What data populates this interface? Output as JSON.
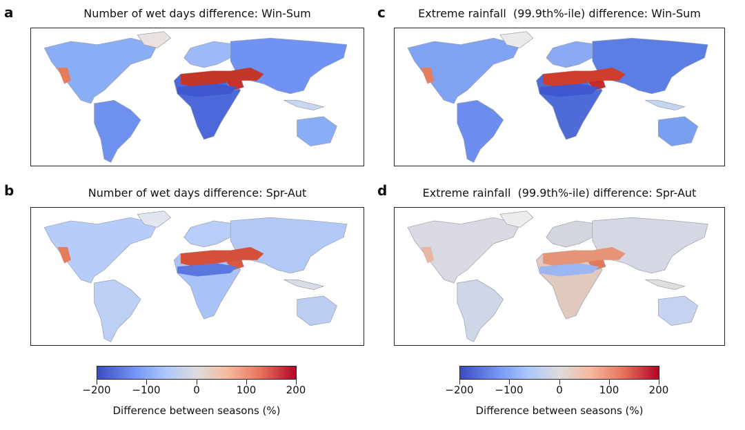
{
  "panels": [
    {
      "letter": "a",
      "title": "Number of wet days difference: Win-Sum"
    },
    {
      "letter": "b",
      "title": "Number of wet days difference: Spr-Aut"
    },
    {
      "letter": "c",
      "title": "Extreme rainfall  (99.9th%-ile) difference: Win-Sum"
    },
    {
      "letter": "d",
      "title": "Extreme rainfall  (99.9th%-ile) difference: Spr-Aut"
    }
  ],
  "colorbar": {
    "label": "Difference between seasons (%)",
    "ticks": [
      "−200",
      "−100",
      "0",
      "100",
      "200"
    ],
    "range": [
      -200,
      200
    ],
    "colors": {
      "low": "#3b4cc0",
      "mid": "#dddcdc",
      "high": "#b40426"
    }
  }
}
